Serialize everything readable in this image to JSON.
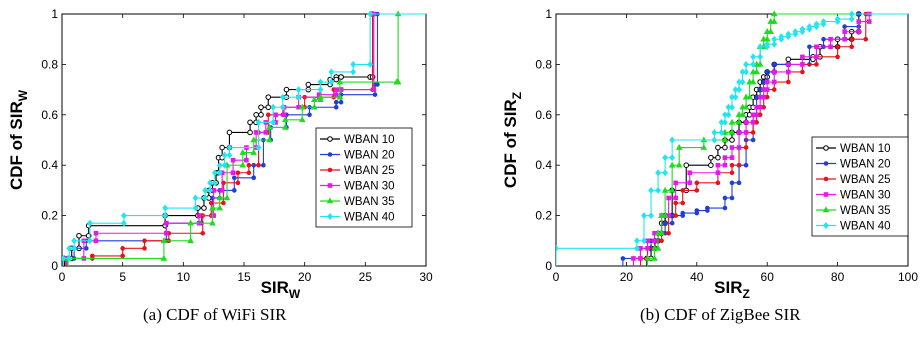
{
  "captions": [
    "(a) CDF of WiFi SIR",
    "(b) CDF of ZigBee SIR"
  ],
  "series_colors": [
    "#000000",
    "#1f3fd8",
    "#e8121a",
    "#e619e6",
    "#1fdc1f",
    "#22e6ee"
  ],
  "chart_data": [
    {
      "type": "line",
      "step": true,
      "xlabel": "SIR",
      "xlabel_sub": "W",
      "ylabel": "CDF of SIR",
      "ylabel_sub": "W",
      "xlim": [
        0,
        30
      ],
      "ylim": [
        0,
        1
      ],
      "xticks": [
        0,
        5,
        10,
        15,
        20,
        25,
        30
      ],
      "yticks": [
        0,
        0.2,
        0.4,
        0.6,
        0.8,
        1
      ],
      "ytick_labels": [
        "0",
        "0.2",
        "0.4",
        "0.6",
        "0.8",
        "1"
      ],
      "legend": "right-middle",
      "grid": false,
      "series": [
        {
          "name": "WBAN 10",
          "x": [
            0.2,
            0.8,
            1.4,
            2.2,
            8.5,
            11.2,
            11.7,
            12.1,
            12.4,
            12.7,
            12.9,
            13.2,
            13.8,
            15.5,
            16.0,
            16.4,
            17.0,
            18.5,
            20.3,
            22.1,
            22.6,
            23.0,
            25.4,
            25.6
          ],
          "y": [
            0.03,
            0.07,
            0.12,
            0.16,
            0.2,
            0.23,
            0.27,
            0.3,
            0.33,
            0.37,
            0.43,
            0.47,
            0.53,
            0.57,
            0.6,
            0.63,
            0.67,
            0.7,
            0.72,
            0.74,
            0.75,
            0.75,
            0.75,
            1.0
          ]
        },
        {
          "name": "WBAN 20",
          "x": [
            0.3,
            1.0,
            2.0,
            8.6,
            11.5,
            12.4,
            13.0,
            14.2,
            15.8,
            16.6,
            17.2,
            18.5,
            20.4,
            22.6,
            23.0,
            25.8,
            26.0
          ],
          "y": [
            0.03,
            0.07,
            0.1,
            0.17,
            0.2,
            0.27,
            0.3,
            0.35,
            0.4,
            0.5,
            0.55,
            0.6,
            0.63,
            0.65,
            0.68,
            0.72,
            1.0
          ]
        },
        {
          "name": "WBAN 25",
          "x": [
            0.4,
            2.5,
            5.0,
            6.8,
            8.8,
            11.6,
            12.3,
            13.3,
            14.5,
            15.4,
            16.2,
            17.0,
            18.2,
            20.0,
            22.4,
            23.0,
            25.6
          ],
          "y": [
            0.03,
            0.04,
            0.07,
            0.1,
            0.13,
            0.2,
            0.25,
            0.33,
            0.37,
            0.4,
            0.53,
            0.6,
            0.63,
            0.67,
            0.7,
            0.7,
            1.0
          ]
        },
        {
          "name": "WBAN 30",
          "x": [
            0.3,
            1.8,
            2.8,
            8.6,
            11.3,
            12.5,
            13.2,
            14.1,
            15.2,
            16.0,
            16.8,
            17.6,
            18.3,
            19.5,
            21.2,
            22.6,
            23.0,
            25.7
          ],
          "y": [
            0.03,
            0.1,
            0.13,
            0.17,
            0.2,
            0.3,
            0.37,
            0.42,
            0.47,
            0.53,
            0.57,
            0.6,
            0.63,
            0.67,
            0.68,
            0.7,
            0.7,
            1.0
          ]
        },
        {
          "name": "WBAN 35",
          "x": [
            0.5,
            8.4,
            10.6,
            12.4,
            13.0,
            13.6,
            14.9,
            15.8,
            17.1,
            18.4,
            19.8,
            20.8,
            21.3,
            22.9,
            27.6,
            27.7
          ],
          "y": [
            0.03,
            0.1,
            0.17,
            0.23,
            0.27,
            0.4,
            0.45,
            0.5,
            0.55,
            0.58,
            0.63,
            0.66,
            0.67,
            0.73,
            0.73,
            1.0
          ]
        },
        {
          "name": "WBAN 40",
          "x": [
            0.1,
            0.6,
            1.0,
            2.3,
            5.1,
            8.5,
            11.0,
            11.8,
            12.2,
            12.6,
            13.0,
            13.4,
            13.8,
            16.2,
            17.4,
            18.2,
            19.5,
            21.3,
            22.2,
            24.0,
            25.4
          ],
          "y": [
            0.03,
            0.07,
            0.1,
            0.17,
            0.2,
            0.23,
            0.27,
            0.3,
            0.33,
            0.37,
            0.4,
            0.44,
            0.47,
            0.57,
            0.63,
            0.67,
            0.7,
            0.73,
            0.77,
            0.8,
            1.0
          ]
        }
      ]
    },
    {
      "type": "line",
      "step": true,
      "xlabel": "SIR",
      "xlabel_sub": "Z",
      "ylabel": "CDF of SIR",
      "ylabel_sub": "Z",
      "xlim": [
        0,
        100
      ],
      "ylim": [
        0,
        1
      ],
      "xticks": [
        0,
        20,
        40,
        60,
        80,
        100
      ],
      "yticks": [
        0,
        0.2,
        0.4,
        0.6,
        0.8,
        1
      ],
      "ytick_labels": [
        "0",
        "0.2",
        "0.4",
        "0.6",
        "0.8",
        "1"
      ],
      "legend": "right-middle",
      "grid": false,
      "series": [
        {
          "name": "WBAN 10",
          "x": [
            25.8,
            27.0,
            28.1,
            29.0,
            30.0,
            31.0,
            33.0,
            37.0,
            44.0,
            46.0,
            48.0,
            50.0,
            52.0,
            54.0,
            55.0,
            56.0,
            57.0,
            58.0,
            59.0,
            60.0,
            62.0,
            66.0,
            73.0,
            75.0,
            80.0,
            84.0,
            86.0
          ],
          "y": [
            0.03,
            0.07,
            0.1,
            0.13,
            0.17,
            0.2,
            0.3,
            0.4,
            0.43,
            0.47,
            0.5,
            0.53,
            0.57,
            0.6,
            0.63,
            0.67,
            0.7,
            0.73,
            0.75,
            0.77,
            0.8,
            0.82,
            0.83,
            0.87,
            0.9,
            0.93,
            1.0
          ]
        },
        {
          "name": "WBAN 20",
          "x": [
            19.0,
            24.0,
            27.0,
            29.0,
            31.0,
            33.0,
            36.0,
            40.0,
            43.0,
            48.0,
            50.0,
            52.0,
            54.0,
            56.0,
            57.0,
            58.0,
            59.0,
            60.0,
            62.0,
            72.0,
            76.0,
            82.0,
            86.0
          ],
          "y": [
            0.03,
            0.07,
            0.1,
            0.13,
            0.17,
            0.2,
            0.21,
            0.22,
            0.23,
            0.27,
            0.33,
            0.4,
            0.5,
            0.6,
            0.67,
            0.7,
            0.73,
            0.77,
            0.8,
            0.87,
            0.9,
            0.95,
            1.0
          ]
        },
        {
          "name": "WBAN 25",
          "x": [
            24.0,
            26.0,
            28.0,
            30.0,
            32.0,
            34.0,
            36.0,
            40.0,
            46.0,
            50.0,
            52.0,
            54.0,
            56.0,
            57.0,
            58.0,
            59.0,
            60.0,
            62.0,
            66.0,
            70.0,
            74.0,
            80.0,
            84.0,
            88.0
          ],
          "y": [
            0.03,
            0.07,
            0.1,
            0.13,
            0.2,
            0.25,
            0.3,
            0.33,
            0.37,
            0.4,
            0.47,
            0.53,
            0.57,
            0.6,
            0.63,
            0.67,
            0.7,
            0.73,
            0.77,
            0.8,
            0.83,
            0.87,
            0.9,
            1.0
          ]
        },
        {
          "name": "WBAN 30",
          "x": [
            22.0,
            24.0,
            26.0,
            28.0,
            30.0,
            32.0,
            34.0,
            38.0,
            46.0,
            48.0,
            50.0,
            52.0,
            54.0,
            56.0,
            57.0,
            58.0,
            59.0,
            60.0,
            62.0,
            66.0,
            70.0,
            74.0,
            78.0,
            82.0,
            86.0,
            89.0
          ],
          "y": [
            0.03,
            0.07,
            0.1,
            0.13,
            0.2,
            0.27,
            0.33,
            0.37,
            0.4,
            0.43,
            0.47,
            0.53,
            0.57,
            0.6,
            0.63,
            0.67,
            0.7,
            0.73,
            0.77,
            0.8,
            0.83,
            0.87,
            0.9,
            0.93,
            0.97,
            1.0
          ]
        },
        {
          "name": "WBAN 35",
          "x": [
            26.0,
            28.0,
            29.0,
            30.0,
            31.0,
            33.0,
            35.0,
            42.0,
            48.0,
            50.0,
            52.0,
            53.0,
            54.0,
            55.0,
            56.0,
            57.0,
            58.0,
            59.0,
            60.0,
            61.0,
            62.0
          ],
          "y": [
            0.03,
            0.07,
            0.13,
            0.2,
            0.3,
            0.4,
            0.47,
            0.5,
            0.53,
            0.57,
            0.6,
            0.63,
            0.67,
            0.73,
            0.77,
            0.8,
            0.87,
            0.9,
            0.93,
            0.97,
            1.0
          ]
        },
        {
          "name": "WBAN 40",
          "x": [
            0.0,
            23.0,
            25.0,
            27.0,
            29.0,
            31.0,
            33.0,
            45.0,
            47.0,
            48.0,
            49.0,
            50.0,
            51.0,
            52.0,
            53.0,
            54.0,
            56.0,
            58.0,
            60.0,
            62.0,
            64.0,
            66.0,
            68.0,
            70.0,
            72.0,
            74.0,
            76.0,
            80.0,
            84.0
          ],
          "y": [
            0.07,
            0.1,
            0.2,
            0.3,
            0.37,
            0.43,
            0.5,
            0.53,
            0.57,
            0.6,
            0.63,
            0.67,
            0.7,
            0.73,
            0.77,
            0.8,
            0.83,
            0.87,
            0.88,
            0.9,
            0.91,
            0.92,
            0.93,
            0.94,
            0.95,
            0.96,
            0.97,
            0.98,
            1.0
          ]
        }
      ]
    }
  ]
}
